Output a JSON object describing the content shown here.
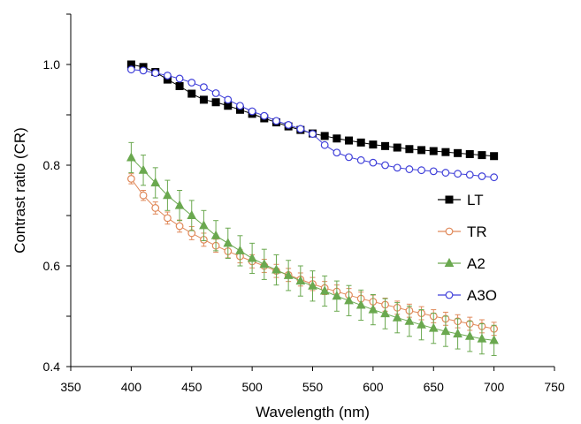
{
  "chart_data": {
    "type": "line",
    "xlabel": "Wavelength (nm)",
    "ylabel": "Contrast ratio (CR)",
    "xlim": [
      350,
      750
    ],
    "ylim": [
      0.4,
      1.1
    ],
    "x_ticks": [
      "350",
      "400",
      "450",
      "500",
      "550",
      "600",
      "650",
      "700",
      "750"
    ],
    "y_ticks": [
      "0.4",
      "0.6",
      "0.8",
      "1.0"
    ],
    "grid": false,
    "legend_position": "right",
    "x": [
      400,
      410,
      420,
      430,
      440,
      450,
      460,
      470,
      480,
      490,
      500,
      510,
      520,
      530,
      540,
      550,
      560,
      570,
      580,
      590,
      600,
      610,
      620,
      630,
      640,
      650,
      660,
      670,
      680,
      690,
      700
    ],
    "series": [
      {
        "name": "LT",
        "color": "#000000",
        "marker": "square-filled",
        "values": [
          1.0,
          0.995,
          0.985,
          0.97,
          0.957,
          0.942,
          0.93,
          0.925,
          0.918,
          0.91,
          0.902,
          0.893,
          0.885,
          0.877,
          0.87,
          0.863,
          0.858,
          0.853,
          0.849,
          0.845,
          0.841,
          0.838,
          0.835,
          0.832,
          0.83,
          0.828,
          0.826,
          0.824,
          0.822,
          0.82,
          0.818
        ],
        "errors": [
          0.006,
          0.006,
          0.006,
          0.006,
          0.006,
          0.006,
          0.006,
          0.006,
          0.006,
          0.006,
          0.006,
          0.006,
          0.006,
          0.006,
          0.006,
          0.006,
          0.006,
          0.006,
          0.006,
          0.006,
          0.006,
          0.006,
          0.006,
          0.006,
          0.006,
          0.006,
          0.006,
          0.006,
          0.006,
          0.006,
          0.006
        ]
      },
      {
        "name": "TR",
        "color": "#E0895A",
        "marker": "circle-open",
        "values": [
          0.773,
          0.74,
          0.715,
          0.695,
          0.679,
          0.665,
          0.652,
          0.64,
          0.629,
          0.619,
          0.609,
          0.6,
          0.59,
          0.582,
          0.573,
          0.564,
          0.556,
          0.549,
          0.542,
          0.535,
          0.529,
          0.523,
          0.517,
          0.511,
          0.506,
          0.5,
          0.495,
          0.49,
          0.485,
          0.48,
          0.475
        ],
        "errors": [
          0.01,
          0.01,
          0.012,
          0.012,
          0.012,
          0.013,
          0.013,
          0.013,
          0.013,
          0.013,
          0.013,
          0.013,
          0.013,
          0.013,
          0.013,
          0.013,
          0.013,
          0.013,
          0.013,
          0.013,
          0.013,
          0.013,
          0.013,
          0.013,
          0.013,
          0.013,
          0.013,
          0.013,
          0.013,
          0.013,
          0.013
        ]
      },
      {
        "name": "A2",
        "color": "#6AA84F",
        "marker": "triangle-filled",
        "values": [
          0.815,
          0.79,
          0.765,
          0.74,
          0.72,
          0.7,
          0.68,
          0.66,
          0.645,
          0.63,
          0.615,
          0.603,
          0.592,
          0.581,
          0.57,
          0.56,
          0.55,
          0.54,
          0.531,
          0.522,
          0.513,
          0.505,
          0.497,
          0.49,
          0.483,
          0.476,
          0.47,
          0.465,
          0.46,
          0.455,
          0.452
        ],
        "errors": [
          0.03,
          0.03,
          0.03,
          0.03,
          0.03,
          0.03,
          0.03,
          0.03,
          0.03,
          0.03,
          0.03,
          0.03,
          0.03,
          0.03,
          0.03,
          0.03,
          0.03,
          0.03,
          0.03,
          0.03,
          0.03,
          0.03,
          0.03,
          0.03,
          0.03,
          0.03,
          0.03,
          0.03,
          0.03,
          0.03,
          0.03
        ]
      },
      {
        "name": "A3O",
        "color": "#3F3FD9",
        "marker": "circle-open",
        "values": [
          0.99,
          0.988,
          0.983,
          0.978,
          0.972,
          0.964,
          0.955,
          0.943,
          0.93,
          0.918,
          0.907,
          0.898,
          0.888,
          0.88,
          0.872,
          0.862,
          0.84,
          0.825,
          0.816,
          0.81,
          0.805,
          0.8,
          0.795,
          0.792,
          0.79,
          0.788,
          0.785,
          0.783,
          0.781,
          0.778,
          0.776
        ]
      }
    ]
  }
}
